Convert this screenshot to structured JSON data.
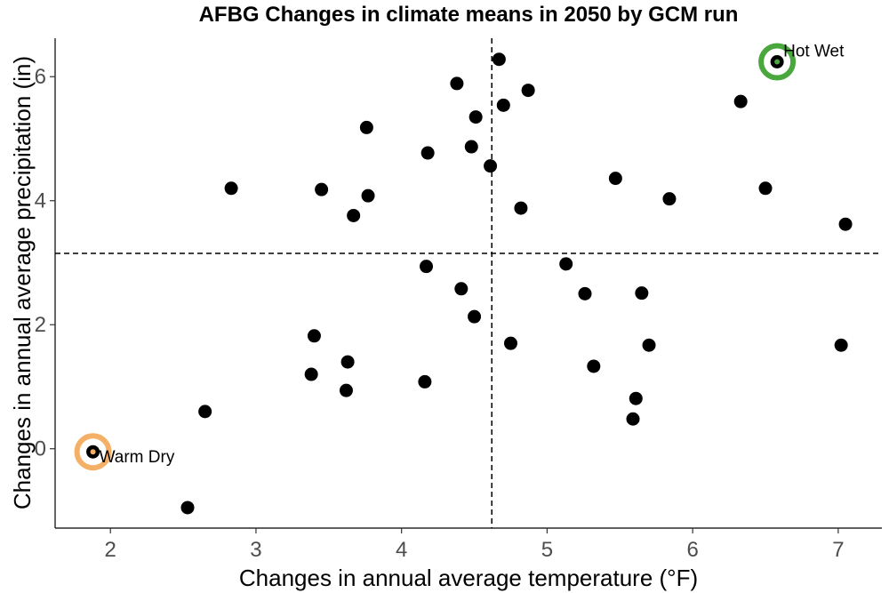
{
  "chart_data": {
    "type": "scatter",
    "title": "AFBG Changes in climate means in 2050 by GCM run",
    "xlabel": "Changes in annual average temperature (°F)",
    "ylabel": "Changes in annual average precipitation (in)",
    "xlim": [
      1.62,
      7.3
    ],
    "ylim": [
      -1.28,
      6.62
    ],
    "xticks": [
      2,
      3,
      4,
      5,
      6,
      7
    ],
    "yticks": [
      0,
      2,
      4,
      6
    ],
    "grid": false,
    "legend": "none",
    "reference_lines": {
      "x": 4.62,
      "y": 3.15
    },
    "points": [
      {
        "x": 1.88,
        "y": -0.05
      },
      {
        "x": 2.53,
        "y": -0.95
      },
      {
        "x": 2.65,
        "y": 0.6
      },
      {
        "x": 2.83,
        "y": 4.2
      },
      {
        "x": 3.38,
        "y": 1.2
      },
      {
        "x": 3.4,
        "y": 1.82
      },
      {
        "x": 3.45,
        "y": 4.18
      },
      {
        "x": 3.62,
        "y": 0.94
      },
      {
        "x": 3.63,
        "y": 1.4
      },
      {
        "x": 3.67,
        "y": 3.76
      },
      {
        "x": 3.76,
        "y": 5.18
      },
      {
        "x": 3.77,
        "y": 4.08
      },
      {
        "x": 4.16,
        "y": 1.08
      },
      {
        "x": 4.17,
        "y": 2.94
      },
      {
        "x": 4.18,
        "y": 4.77
      },
      {
        "x": 4.38,
        "y": 5.89
      },
      {
        "x": 4.41,
        "y": 2.58
      },
      {
        "x": 4.48,
        "y": 4.87
      },
      {
        "x": 4.5,
        "y": 2.13
      },
      {
        "x": 4.51,
        "y": 5.35
      },
      {
        "x": 4.61,
        "y": 4.56
      },
      {
        "x": 4.67,
        "y": 6.28
      },
      {
        "x": 4.7,
        "y": 5.54
      },
      {
        "x": 4.75,
        "y": 1.7
      },
      {
        "x": 4.82,
        "y": 3.88
      },
      {
        "x": 4.87,
        "y": 5.78
      },
      {
        "x": 5.13,
        "y": 2.98
      },
      {
        "x": 5.26,
        "y": 2.5
      },
      {
        "x": 5.32,
        "y": 1.33
      },
      {
        "x": 5.47,
        "y": 4.36
      },
      {
        "x": 5.59,
        "y": 0.48
      },
      {
        "x": 5.61,
        "y": 0.81
      },
      {
        "x": 5.65,
        "y": 2.51
      },
      {
        "x": 5.7,
        "y": 1.67
      },
      {
        "x": 5.84,
        "y": 4.03
      },
      {
        "x": 6.33,
        "y": 5.6
      },
      {
        "x": 6.5,
        "y": 4.2
      },
      {
        "x": 6.58,
        "y": 6.24
      },
      {
        "x": 7.02,
        "y": 1.67
      },
      {
        "x": 7.05,
        "y": 3.62
      }
    ],
    "annotations": [
      {
        "label": "Warm Dry",
        "x": 1.88,
        "y": -0.05,
        "color": "#f4b066"
      },
      {
        "label": "Hot Wet",
        "x": 6.58,
        "y": 6.24,
        "color": "#4aa73e"
      }
    ],
    "point_color": "#000000",
    "reference_line_color": "#000000"
  }
}
